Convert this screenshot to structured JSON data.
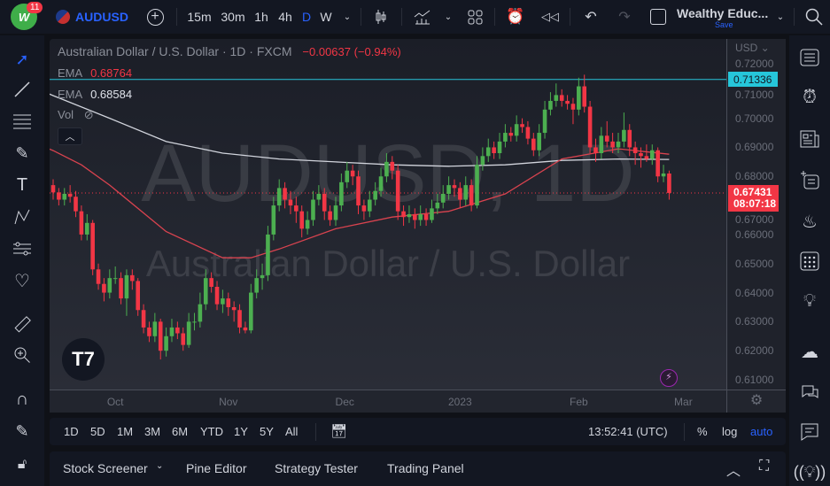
{
  "topbar": {
    "badge": "11",
    "symbol": "AUDUSD",
    "intervals": [
      "15m",
      "30m",
      "1h",
      "4h",
      "D",
      "W"
    ],
    "active_interval": "D",
    "layout_name": "Wealthy Educ...",
    "save_label": "Save"
  },
  "legend": {
    "title": "Australian Dollar / U.S. Dollar · 1D · FXCM",
    "change": "−0.00637 (−0.94%)",
    "ema1_label": "EMA",
    "ema1_value": "0.68764",
    "ema2_label": "EMA",
    "ema2_value": "0.68584",
    "vol_label": "Vol"
  },
  "watermark": {
    "line1": "AUDUSD, 1D",
    "line2": "Australian Dollar / U.S. Dollar"
  },
  "price_axis": {
    "currency": "USD",
    "ticks": [
      "0.72000",
      "0.71000",
      "0.70000",
      "0.69000",
      "0.68000",
      "0.67000",
      "0.66000",
      "0.65000",
      "0.64000",
      "0.63000",
      "0.62000",
      "0.61000"
    ],
    "line_label": "0.71336",
    "last_price": "0.67431",
    "countdown": "08:07:18"
  },
  "time_axis": {
    "labels": [
      {
        "label": "Oct",
        "at_bar": 11
      },
      {
        "label": "Nov",
        "at_bar": 31
      },
      {
        "label": "Dec",
        "at_bar": 51.6
      },
      {
        "label": "2023",
        "at_bar": 72
      },
      {
        "label": "Feb",
        "at_bar": 93
      },
      {
        "label": "Mar",
        "at_bar": 111.5
      }
    ]
  },
  "range_bar": {
    "ranges": [
      "1D",
      "5D",
      "1M",
      "3M",
      "6M",
      "YTD",
      "1Y",
      "5Y",
      "All"
    ],
    "clock": "13:52:41 (UTC)",
    "percent": "%",
    "log": "log",
    "auto": "auto"
  },
  "bottom_panel": {
    "tabs": [
      "Stock Screener",
      "Pine Editor",
      "Strategy Tester",
      "Trading Panel"
    ]
  },
  "colors": {
    "up": "#4caf50",
    "down": "#f23645",
    "ema50": "#d9434f",
    "ema200": "#d1d4dc",
    "hline": "#26c6da",
    "accent": "#2962ff"
  },
  "chart_data": {
    "type": "candlestick",
    "symbol": "AUDUSD",
    "interval": "1D",
    "ylim": [
      0.605,
      0.722
    ],
    "hline": 0.71336,
    "last": 0.67431,
    "candles": [
      [
        0.677,
        0.679,
        0.672,
        0.6745
      ],
      [
        0.6745,
        0.676,
        0.67,
        0.672
      ],
      [
        0.672,
        0.676,
        0.67,
        0.674
      ],
      [
        0.674,
        0.677,
        0.671,
        0.673
      ],
      [
        0.673,
        0.675,
        0.666,
        0.668
      ],
      [
        0.668,
        0.67,
        0.658,
        0.66
      ],
      [
        0.66,
        0.667,
        0.658,
        0.664
      ],
      [
        0.664,
        0.665,
        0.646,
        0.648
      ],
      [
        0.648,
        0.65,
        0.641,
        0.643
      ],
      [
        0.643,
        0.645,
        0.637,
        0.64
      ],
      [
        0.64,
        0.648,
        0.638,
        0.645
      ],
      [
        0.645,
        0.649,
        0.643,
        0.645
      ],
      [
        0.645,
        0.647,
        0.636,
        0.638
      ],
      [
        0.638,
        0.648,
        0.632,
        0.646
      ],
      [
        0.646,
        0.648,
        0.641,
        0.644
      ],
      [
        0.644,
        0.645,
        0.632,
        0.634
      ],
      [
        0.634,
        0.636,
        0.626,
        0.628
      ],
      [
        0.628,
        0.63,
        0.623,
        0.625
      ],
      [
        0.625,
        0.633,
        0.623,
        0.63
      ],
      [
        0.63,
        0.631,
        0.617,
        0.62
      ],
      [
        0.62,
        0.628,
        0.618,
        0.625
      ],
      [
        0.625,
        0.631,
        0.623,
        0.628
      ],
      [
        0.628,
        0.63,
        0.624,
        0.626
      ],
      [
        0.626,
        0.628,
        0.62,
        0.622
      ],
      [
        0.622,
        0.633,
        0.621,
        0.63
      ],
      [
        0.63,
        0.633,
        0.627,
        0.63
      ],
      [
        0.63,
        0.64,
        0.628,
        0.636
      ],
      [
        0.636,
        0.648,
        0.634,
        0.645
      ],
      [
        0.645,
        0.647,
        0.64,
        0.642
      ],
      [
        0.642,
        0.644,
        0.634,
        0.636
      ],
      [
        0.636,
        0.641,
        0.633,
        0.638
      ],
      [
        0.638,
        0.64,
        0.632,
        0.635
      ],
      [
        0.635,
        0.637,
        0.63,
        0.634
      ],
      [
        0.634,
        0.636,
        0.626,
        0.628
      ],
      [
        0.628,
        0.63,
        0.626,
        0.627
      ],
      [
        0.627,
        0.643,
        0.626,
        0.64
      ],
      [
        0.64,
        0.648,
        0.638,
        0.645
      ],
      [
        0.645,
        0.65,
        0.641,
        0.646
      ],
      [
        0.646,
        0.663,
        0.644,
        0.66
      ],
      [
        0.66,
        0.673,
        0.658,
        0.67
      ],
      [
        0.67,
        0.679,
        0.668,
        0.676
      ],
      [
        0.676,
        0.678,
        0.669,
        0.672
      ],
      [
        0.672,
        0.675,
        0.667,
        0.67
      ],
      [
        0.67,
        0.673,
        0.664,
        0.668
      ],
      [
        0.668,
        0.67,
        0.659,
        0.662
      ],
      [
        0.662,
        0.668,
        0.66,
        0.665
      ],
      [
        0.665,
        0.675,
        0.663,
        0.672
      ],
      [
        0.672,
        0.677,
        0.67,
        0.674
      ],
      [
        0.674,
        0.676,
        0.665,
        0.668
      ],
      [
        0.668,
        0.67,
        0.663,
        0.665
      ],
      [
        0.665,
        0.673,
        0.663,
        0.67
      ],
      [
        0.67,
        0.681,
        0.668,
        0.678
      ],
      [
        0.678,
        0.685,
        0.676,
        0.682
      ],
      [
        0.682,
        0.684,
        0.677,
        0.68
      ],
      [
        0.68,
        0.682,
        0.667,
        0.67
      ],
      [
        0.67,
        0.672,
        0.665,
        0.668
      ],
      [
        0.668,
        0.675,
        0.666,
        0.672
      ],
      [
        0.672,
        0.678,
        0.67,
        0.675
      ],
      [
        0.675,
        0.683,
        0.673,
        0.68
      ],
      [
        0.68,
        0.688,
        0.678,
        0.685
      ],
      [
        0.685,
        0.687,
        0.679,
        0.682
      ],
      [
        0.682,
        0.684,
        0.665,
        0.668
      ],
      [
        0.668,
        0.67,
        0.663,
        0.666
      ],
      [
        0.666,
        0.67,
        0.664,
        0.667
      ],
      [
        0.667,
        0.669,
        0.662,
        0.665
      ],
      [
        0.665,
        0.67,
        0.663,
        0.667
      ],
      [
        0.667,
        0.669,
        0.663,
        0.665
      ],
      [
        0.665,
        0.672,
        0.664,
        0.669
      ],
      [
        0.669,
        0.674,
        0.667,
        0.671
      ],
      [
        0.671,
        0.677,
        0.669,
        0.674
      ],
      [
        0.674,
        0.68,
        0.672,
        0.677
      ],
      [
        0.677,
        0.679,
        0.673,
        0.676
      ],
      [
        0.676,
        0.678,
        0.669,
        0.672
      ],
      [
        0.672,
        0.68,
        0.67,
        0.677
      ],
      [
        0.677,
        0.679,
        0.668,
        0.67
      ],
      [
        0.67,
        0.687,
        0.669,
        0.684
      ],
      [
        0.684,
        0.69,
        0.682,
        0.687
      ],
      [
        0.687,
        0.693,
        0.685,
        0.69
      ],
      [
        0.69,
        0.692,
        0.686,
        0.688
      ],
      [
        0.688,
        0.695,
        0.686,
        0.692
      ],
      [
        0.692,
        0.698,
        0.69,
        0.695
      ],
      [
        0.695,
        0.697,
        0.692,
        0.694
      ],
      [
        0.694,
        0.701,
        0.692,
        0.698
      ],
      [
        0.698,
        0.7,
        0.695,
        0.697
      ],
      [
        0.697,
        0.699,
        0.691,
        0.693
      ],
      [
        0.693,
        0.695,
        0.687,
        0.689
      ],
      [
        0.689,
        0.698,
        0.687,
        0.695
      ],
      [
        0.695,
        0.706,
        0.693,
        0.703
      ],
      [
        0.703,
        0.709,
        0.701,
        0.706
      ],
      [
        0.706,
        0.712,
        0.704,
        0.708
      ],
      [
        0.708,
        0.71,
        0.704,
        0.706
      ],
      [
        0.706,
        0.708,
        0.703,
        0.705
      ],
      [
        0.705,
        0.707,
        0.698,
        0.703
      ],
      [
        0.703,
        0.714,
        0.701,
        0.711
      ],
      [
        0.711,
        0.715,
        0.702,
        0.704
      ],
      [
        0.704,
        0.706,
        0.688,
        0.69
      ],
      [
        0.69,
        0.693,
        0.685,
        0.688
      ],
      [
        0.688,
        0.697,
        0.686,
        0.694
      ],
      [
        0.694,
        0.699,
        0.69,
        0.692
      ],
      [
        0.692,
        0.695,
        0.688,
        0.69
      ],
      [
        0.69,
        0.695,
        0.688,
        0.692
      ],
      [
        0.692,
        0.702,
        0.69,
        0.696
      ],
      [
        0.696,
        0.698,
        0.687,
        0.69
      ],
      [
        0.69,
        0.692,
        0.684,
        0.688
      ],
      [
        0.688,
        0.69,
        0.683,
        0.687
      ],
      [
        0.687,
        0.691,
        0.685,
        0.686
      ],
      [
        0.686,
        0.691,
        0.684,
        0.689
      ],
      [
        0.689,
        0.69,
        0.678,
        0.68
      ],
      [
        0.68,
        0.684,
        0.678,
        0.681
      ],
      [
        0.681,
        0.682,
        0.672,
        0.67431
      ]
    ],
    "ema_red": [
      [
        0,
        0.6889
      ],
      [
        5,
        0.684
      ],
      [
        10,
        0.677
      ],
      [
        20,
        0.661
      ],
      [
        30,
        0.652
      ],
      [
        35,
        0.652
      ],
      [
        40,
        0.655
      ],
      [
        50,
        0.662
      ],
      [
        60,
        0.666
      ],
      [
        70,
        0.668
      ],
      [
        80,
        0.674
      ],
      [
        90,
        0.686
      ],
      [
        100,
        0.6895
      ],
      [
        109,
        0.68764
      ]
    ],
    "ema_white": [
      [
        0,
        0.7078
      ],
      [
        10,
        0.7
      ],
      [
        20,
        0.692
      ],
      [
        30,
        0.688
      ],
      [
        40,
        0.686
      ],
      [
        50,
        0.685
      ],
      [
        60,
        0.684
      ],
      [
        70,
        0.6835
      ],
      [
        80,
        0.684
      ],
      [
        90,
        0.6855
      ],
      [
        100,
        0.686
      ],
      [
        109,
        0.68584
      ]
    ]
  }
}
